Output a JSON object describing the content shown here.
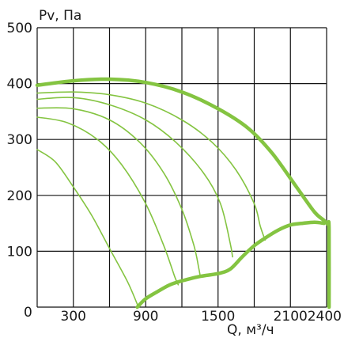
{
  "chart_data": {
    "type": "line",
    "ylabel": "Pv, Па",
    "xlabel": "Q, м³/ч",
    "xlim": [
      0,
      2400
    ],
    "ylim": [
      0,
      500
    ],
    "x_ticks": [
      {
        "value": 0,
        "label": "0"
      },
      {
        "value": 300,
        "label": "300"
      },
      {
        "value": 900,
        "label": "900"
      },
      {
        "value": 1500,
        "label": "1500"
      },
      {
        "value": 2100,
        "label": "2100"
      },
      {
        "value": 2400,
        "label": "2400"
      }
    ],
    "y_ticks": [
      {
        "value": 100,
        "label": "100"
      },
      {
        "value": 200,
        "label": "200"
      },
      {
        "value": 300,
        "label": "300"
      },
      {
        "value": 400,
        "label": "400"
      },
      {
        "value": 500,
        "label": "500"
      }
    ],
    "x_grid": [
      0,
      300,
      600,
      900,
      1200,
      1500,
      1800,
      2100,
      2400
    ],
    "y_grid": [
      0,
      100,
      200,
      300,
      400,
      500
    ],
    "grid": true,
    "line_color": "#84c441",
    "series": [
      {
        "style": "thick",
        "points": [
          [
            0,
            397
          ],
          [
            300,
            405
          ],
          [
            600,
            408
          ],
          [
            900,
            402
          ],
          [
            1200,
            385
          ],
          [
            1500,
            355
          ],
          [
            1750,
            320
          ],
          [
            1950,
            275
          ],
          [
            2150,
            215
          ],
          [
            2300,
            170
          ],
          [
            2380,
            155
          ],
          [
            2410,
            148
          ],
          [
            2420,
            140
          ],
          [
            2420,
            0
          ]
        ]
      },
      {
        "style": "thick",
        "points": [
          [
            830,
            0
          ],
          [
            900,
            15
          ],
          [
            1000,
            28
          ],
          [
            1100,
            40
          ],
          [
            1200,
            47
          ],
          [
            1350,
            55
          ],
          [
            1500,
            60
          ],
          [
            1600,
            68
          ],
          [
            1700,
            90
          ],
          [
            1800,
            110
          ],
          [
            1900,
            125
          ],
          [
            2000,
            138
          ],
          [
            2100,
            147
          ],
          [
            2200,
            150
          ],
          [
            2300,
            152
          ],
          [
            2380,
            150
          ]
        ]
      },
      {
        "style": "thin",
        "points": [
          [
            0,
            383
          ],
          [
            300,
            385
          ],
          [
            600,
            380
          ],
          [
            900,
            365
          ],
          [
            1200,
            335
          ],
          [
            1450,
            295
          ],
          [
            1650,
            245
          ],
          [
            1800,
            185
          ],
          [
            1850,
            145
          ],
          [
            1890,
            120
          ]
        ]
      },
      {
        "style": "thin",
        "points": [
          [
            0,
            372
          ],
          [
            300,
            375
          ],
          [
            600,
            362
          ],
          [
            900,
            335
          ],
          [
            1150,
            295
          ],
          [
            1380,
            240
          ],
          [
            1520,
            185
          ],
          [
            1600,
            115
          ],
          [
            1620,
            90
          ]
        ]
      },
      {
        "style": "thin",
        "points": [
          [
            0,
            356
          ],
          [
            300,
            355
          ],
          [
            600,
            335
          ],
          [
            850,
            295
          ],
          [
            1050,
            240
          ],
          [
            1200,
            175
          ],
          [
            1300,
            110
          ],
          [
            1340,
            70
          ],
          [
            1350,
            58
          ]
        ]
      },
      {
        "style": "thin",
        "points": [
          [
            0,
            340
          ],
          [
            250,
            330
          ],
          [
            500,
            300
          ],
          [
            700,
            255
          ],
          [
            900,
            185
          ],
          [
            1050,
            110
          ],
          [
            1140,
            55
          ],
          [
            1170,
            40
          ]
        ]
      },
      {
        "style": "thin",
        "points": [
          [
            0,
            282
          ],
          [
            150,
            260
          ],
          [
            300,
            215
          ],
          [
            450,
            165
          ],
          [
            600,
            105
          ],
          [
            750,
            45
          ],
          [
            840,
            0
          ]
        ]
      }
    ]
  }
}
